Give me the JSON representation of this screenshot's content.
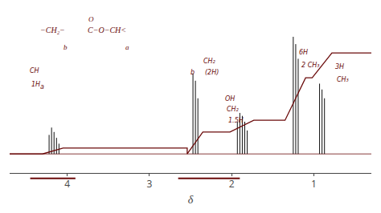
{
  "chart_data": {
    "type": "nmr",
    "xlabel": "δ",
    "xlim": [
      4.7,
      0.3
    ],
    "ylim": [
      0.0,
      1.05
    ],
    "xticks": [
      4,
      3,
      2,
      1
    ],
    "yticks": [],
    "tick_labels": "x",
    "grid": false,
    "color": "#6b0b0b",
    "series": [
      {
        "type": "stem",
        "color": "#111111",
        "base": 0.13,
        "x": [
          4.22,
          4.19,
          4.16,
          4.13,
          4.1,
          2.47,
          2.44,
          2.41,
          1.93,
          1.9,
          1.87,
          1.84,
          1.81,
          1.25,
          1.22,
          1.19,
          0.93,
          0.9,
          0.87
        ],
        "values": [
          0.13,
          0.18,
          0.15,
          0.11,
          0.07,
          0.55,
          0.5,
          0.38,
          0.22,
          0.28,
          0.26,
          0.22,
          0.16,
          0.8,
          0.75,
          0.65,
          0.48,
          0.44,
          0.38
        ]
      },
      {
        "type": "integral",
        "color": "#6b0b0b",
        "x_start": 4.7,
        "x_end": 0.3,
        "segments": [
          {
            "x": [
              4.3,
              4.05
            ],
            "values": [
              0.13,
              0.17
            ]
          },
          {
            "x": [
              2.54,
              2.35
            ],
            "values": [
              0.13,
              0.28
            ]
          },
          {
            "x": [
              2.02,
              1.73
            ],
            "values": [
              0.28,
              0.36
            ]
          },
          {
            "x": [
              1.35,
              1.1
            ],
            "values": [
              0.36,
              0.65
            ]
          },
          {
            "x": [
              1.02,
              0.78
            ],
            "values": [
              0.65,
              0.82
            ]
          }
        ]
      },
      {
        "type": "baseline",
        "color": "#6b0b0b",
        "values": [
          0.13
        ]
      },
      {
        "type": "range_bar",
        "color": "#6b0b0b",
        "segments": [
          {
            "x": [
              4.45,
              3.9
            ]
          },
          {
            "x": [
              2.65,
              1.9
            ]
          }
        ]
      }
    ],
    "annotations": [
      {
        "text": "−CH₂−"
      },
      {
        "text": "C−O−CH<"
      },
      {
        "text": "O"
      },
      {
        "text": "b"
      },
      {
        "text": "a"
      },
      {
        "text": "CH",
        "x": 4.48,
        "y": 0.66
      },
      {
        "text": "1H",
        "x": 4.46,
        "y": 0.57
      },
      {
        "text": "a",
        "x": 4.35,
        "y": 0.55
      },
      {
        "text": "CH₂",
        "x": 2.36,
        "y": 0.73
      },
      {
        "text": "(2H)",
        "x": 2.34,
        "y": 0.65
      },
      {
        "text": "b",
        "x": 2.52,
        "y": 0.65
      },
      {
        "text": "OH",
        "x": 2.1,
        "y": 0.47
      },
      {
        "text": "CH₂",
        "x": 2.08,
        "y": 0.4
      },
      {
        "text": "1.5H",
        "x": 2.06,
        "y": 0.32
      },
      {
        "text": "6H",
        "x": 1.2,
        "y": 0.79
      },
      {
        "text": "2 CH₃",
        "x": 1.17,
        "y": 0.7
      },
      {
        "text": "3H",
        "x": 0.76,
        "y": 0.69
      },
      {
        "text": "CH₃",
        "x": 0.74,
        "y": 0.6
      }
    ]
  }
}
